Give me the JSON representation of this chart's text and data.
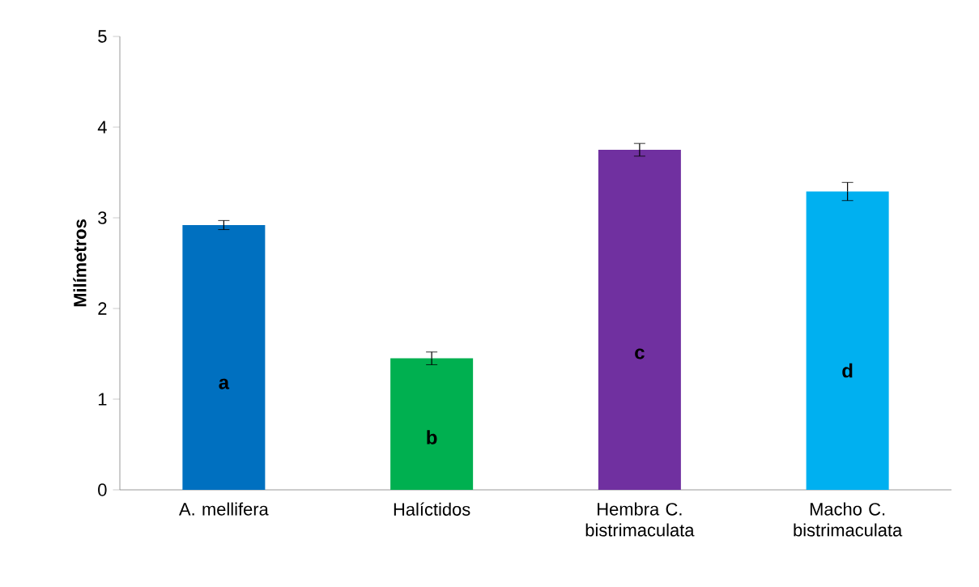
{
  "chart_data": {
    "type": "bar",
    "ylabel": "Milímetros",
    "categories": [
      "A. mellifera",
      "Halíctidos",
      "Hembra C. bistrimaculata",
      "Macho C. bistrimaculata"
    ],
    "values": [
      2.92,
      1.45,
      3.75,
      3.29
    ],
    "errors": [
      0.05,
      0.07,
      0.07,
      0.1
    ],
    "colors": [
      "#0070c0",
      "#00b050",
      "#7030a0",
      "#00b0f0"
    ],
    "ylim": [
      0,
      5
    ],
    "yticks": [
      0,
      1,
      2,
      3,
      4,
      5
    ],
    "grid": false,
    "annotations": [
      "a",
      "b",
      "c",
      "d"
    ]
  }
}
